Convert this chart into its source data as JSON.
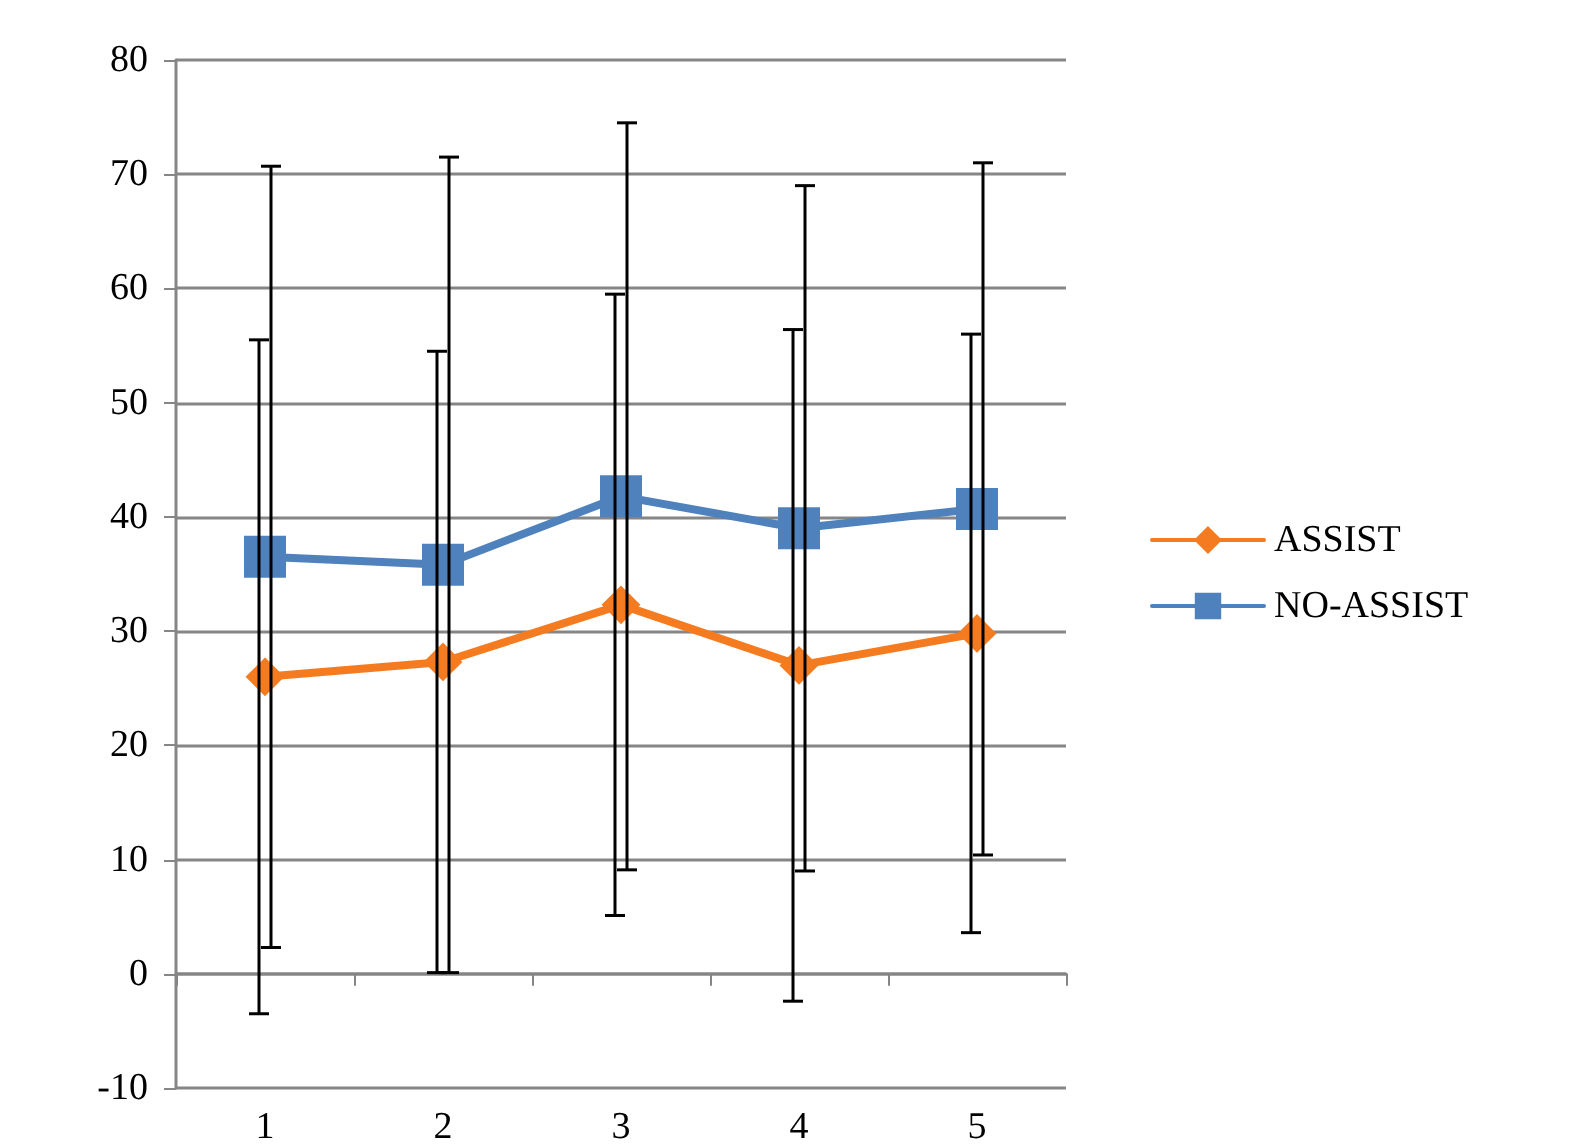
{
  "chart_data": {
    "type": "line",
    "categories": [
      "1",
      "2",
      "3",
      "4",
      "5"
    ],
    "series": [
      {
        "name": "ASSIST",
        "color": "#f47b20",
        "marker": "diamond",
        "values": [
          26,
          27.3,
          32.3,
          27,
          29.8
        ],
        "errors": [
          29.5,
          27.2,
          27.2,
          29.4,
          26.2
        ]
      },
      {
        "name": "NO-ASSIST",
        "color": "#4f81bd",
        "marker": "square",
        "values": [
          36.5,
          35.8,
          41.8,
          39,
          40.7
        ],
        "errors": [
          34.2,
          35.7,
          32.7,
          30,
          30.3
        ]
      }
    ],
    "ylim": [
      -10,
      80
    ],
    "yticks": [
      -10,
      0,
      10,
      20,
      30,
      40,
      50,
      60,
      70,
      80
    ],
    "grid": "y",
    "legend": "right"
  }
}
